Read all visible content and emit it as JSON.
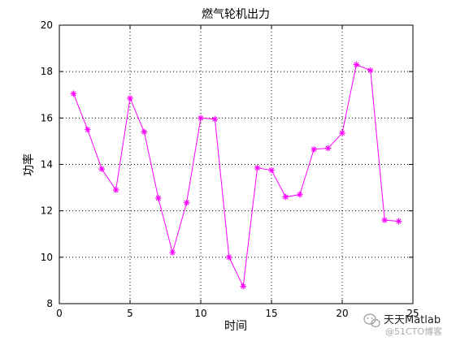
{
  "chart_data": {
    "type": "line",
    "title": "燃气轮机出力",
    "xlabel": "时间",
    "ylabel": "功率",
    "xlim": [
      0,
      25
    ],
    "ylim": [
      8,
      20
    ],
    "xticks": [
      0,
      5,
      10,
      15,
      20,
      25
    ],
    "yticks": [
      8,
      10,
      12,
      14,
      16,
      18,
      20
    ],
    "grid": true,
    "grid_style": "dotted",
    "marker": "asterisk",
    "series": [
      {
        "color": "#ff00ff",
        "x": [
          1,
          2,
          3,
          4,
          5,
          6,
          7,
          8,
          9,
          10,
          11,
          12,
          13,
          14,
          15,
          16,
          17,
          18,
          19,
          20,
          21,
          22,
          23,
          24
        ],
        "y": [
          17.05,
          15.5,
          13.8,
          12.9,
          16.85,
          15.4,
          12.55,
          10.2,
          12.35,
          16.0,
          15.95,
          10.0,
          8.75,
          13.85,
          13.75,
          12.6,
          12.7,
          14.65,
          14.7,
          15.35,
          18.3,
          18.05,
          11.6,
          11.55
        ]
      }
    ]
  },
  "watermark": {
    "icon": "wechat-icon",
    "text": "天天Matlab",
    "subtext": "@51CTO博客"
  }
}
